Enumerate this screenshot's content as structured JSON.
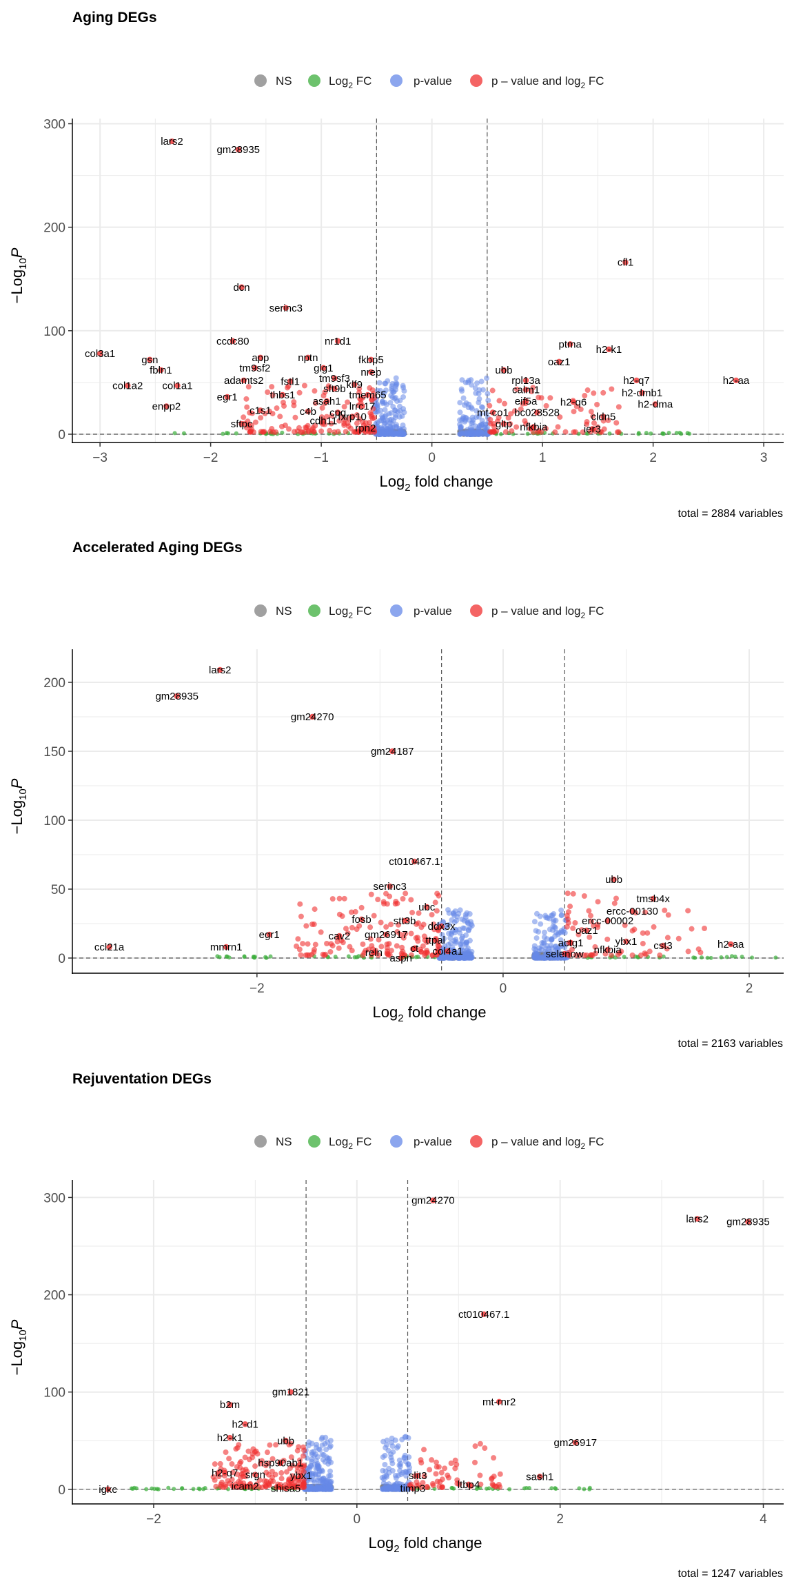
{
  "legend": {
    "items": [
      {
        "key": "ns",
        "label": "NS",
        "color": "#808080"
      },
      {
        "key": "fc",
        "label_main": "Log",
        "label_sub": "2",
        "label_tail": " FC",
        "color": "#3cae3c"
      },
      {
        "key": "p",
        "label": "p-value",
        "color": "#6688e8"
      },
      {
        "key": "both",
        "label_main": "p – value and log",
        "label_sub": "2",
        "label_tail": " FC",
        "color": "#f03030"
      }
    ]
  },
  "axis": {
    "x_main": "Log",
    "x_sub": "2",
    "x_tail": " fold change",
    "y_prefix": "−Log",
    "y_sub": "10",
    "y_var": "P"
  },
  "colors": {
    "ns": "#808080",
    "fc": "#3cae3c",
    "p": "#6688e8",
    "both": "#f03030",
    "grid": "#ebebeb",
    "dashed": "#555555"
  },
  "chart_data": [
    {
      "type": "scatter",
      "title": "Aging DEGs",
      "caption": "total = 2884 variables",
      "xlim": [
        -3.25,
        3.18
      ],
      "ylim": [
        -8,
        305
      ],
      "xticks": [
        -3,
        -2,
        -1,
        0,
        1,
        2,
        3
      ],
      "yticks": [
        0,
        100,
        200,
        300
      ],
      "fc_cutoff": 0.5,
      "p_cutoff_neglog10": 0,
      "labeled_points": [
        {
          "gene": "lars2",
          "x": -2.35,
          "y": 283
        },
        {
          "gene": "gm28935",
          "x": -1.75,
          "y": 275
        },
        {
          "gene": "cfl1",
          "x": 1.75,
          "y": 166
        },
        {
          "gene": "dcn",
          "x": -1.72,
          "y": 142
        },
        {
          "gene": "serinc3",
          "x": -1.32,
          "y": 122
        },
        {
          "gene": "ccdc80",
          "x": -1.8,
          "y": 90
        },
        {
          "gene": "nr1d1",
          "x": -0.85,
          "y": 90
        },
        {
          "gene": "ptma",
          "x": 1.25,
          "y": 87
        },
        {
          "gene": "h2-k1",
          "x": 1.6,
          "y": 82
        },
        {
          "gene": "col3a1",
          "x": -3.0,
          "y": 78
        },
        {
          "gene": "app",
          "x": -1.55,
          "y": 74
        },
        {
          "gene": "nptn",
          "x": -1.12,
          "y": 74
        },
        {
          "gene": "fkbp5",
          "x": -0.55,
          "y": 72
        },
        {
          "gene": "gsn",
          "x": -2.55,
          "y": 72
        },
        {
          "gene": "oaz1",
          "x": 1.15,
          "y": 70
        },
        {
          "gene": "tm9sf2",
          "x": -1.6,
          "y": 64
        },
        {
          "gene": "glg1",
          "x": -0.98,
          "y": 64
        },
        {
          "gene": "ubb",
          "x": 0.65,
          "y": 62
        },
        {
          "gene": "fbln1",
          "x": -2.45,
          "y": 62
        },
        {
          "gene": "nrep",
          "x": -0.55,
          "y": 60
        },
        {
          "gene": "tm9sf3",
          "x": -0.88,
          "y": 54
        },
        {
          "gene": "adamts2",
          "x": -1.7,
          "y": 52
        },
        {
          "gene": "fstl1",
          "x": -1.28,
          "y": 51
        },
        {
          "gene": "rpl13a",
          "x": 0.85,
          "y": 52
        },
        {
          "gene": "h2-q7",
          "x": 1.85,
          "y": 52
        },
        {
          "gene": "h2-aa",
          "x": 2.75,
          "y": 52
        },
        {
          "gene": "col1a2",
          "x": -2.75,
          "y": 47
        },
        {
          "gene": "col1a1",
          "x": -2.3,
          "y": 47
        },
        {
          "gene": "klf9",
          "x": -0.7,
          "y": 48
        },
        {
          "gene": "sft9b",
          "x": -0.88,
          "y": 44
        },
        {
          "gene": "calm1",
          "x": 0.85,
          "y": 43
        },
        {
          "gene": "h2-dmb1",
          "x": 1.9,
          "y": 40
        },
        {
          "gene": "egr1",
          "x": -1.85,
          "y": 36
        },
        {
          "gene": "thbs1",
          "x": -1.35,
          "y": 38
        },
        {
          "gene": "tmem65",
          "x": -0.58,
          "y": 38
        },
        {
          "gene": "asah1",
          "x": -0.95,
          "y": 32
        },
        {
          "gene": "eif5a",
          "x": 0.85,
          "y": 32
        },
        {
          "gene": "h2-q6",
          "x": 1.28,
          "y": 31
        },
        {
          "gene": "h2-dma",
          "x": 2.02,
          "y": 29
        },
        {
          "gene": "enpp2",
          "x": -2.4,
          "y": 27
        },
        {
          "gene": "lrrc17",
          "x": -0.63,
          "y": 27
        },
        {
          "gene": "c1s1",
          "x": -1.55,
          "y": 23
        },
        {
          "gene": "c4b",
          "x": -1.12,
          "y": 22
        },
        {
          "gene": "cpq",
          "x": -0.85,
          "y": 21
        },
        {
          "gene": "fxrp10",
          "x": -0.72,
          "y": 17
        },
        {
          "gene": "mt-co1",
          "x": 0.55,
          "y": 21
        },
        {
          "gene": "bc028528",
          "x": 0.95,
          "y": 21
        },
        {
          "gene": "cldn5",
          "x": 1.55,
          "y": 17
        },
        {
          "gene": "sftpc",
          "x": -1.72,
          "y": 10
        },
        {
          "gene": "cdh11",
          "x": -0.98,
          "y": 13
        },
        {
          "gene": "rpn2",
          "x": -0.6,
          "y": 6
        },
        {
          "gene": "gltp",
          "x": 0.65,
          "y": 10
        },
        {
          "gene": "nfkbia",
          "x": 0.92,
          "y": 7
        },
        {
          "gene": "ier3",
          "x": 1.45,
          "y": 5
        }
      ]
    },
    {
      "type": "scatter",
      "title": "Accelerated Aging DEGs",
      "caption": "total = 2163 variables",
      "xlim": [
        -3.5,
        2.28
      ],
      "ylim": [
        -11,
        224
      ],
      "xticks": [
        -2,
        0,
        2
      ],
      "yticks": [
        0,
        50,
        100,
        150,
        200
      ],
      "fc_cutoff": 0.5,
      "p_cutoff_neglog10": 0,
      "labeled_points": [
        {
          "gene": "lars2",
          "x": -2.3,
          "y": 209
        },
        {
          "gene": "gm28935",
          "x": -2.65,
          "y": 190
        },
        {
          "gene": "gm24270",
          "x": -1.55,
          "y": 175
        },
        {
          "gene": "gm24187",
          "x": -0.9,
          "y": 150
        },
        {
          "gene": "ct010467.1",
          "x": -0.72,
          "y": 70
        },
        {
          "gene": "ubb",
          "x": 0.9,
          "y": 57
        },
        {
          "gene": "serinc3",
          "x": -0.92,
          "y": 52
        },
        {
          "gene": "tmsb4x",
          "x": 1.22,
          "y": 43
        },
        {
          "gene": "ubc",
          "x": -0.62,
          "y": 37
        },
        {
          "gene": "ercc-00130",
          "x": 1.05,
          "y": 34
        },
        {
          "gene": "fosb",
          "x": -1.15,
          "y": 28
        },
        {
          "gene": "stt3b",
          "x": -0.8,
          "y": 27
        },
        {
          "gene": "ercc-00002",
          "x": 0.85,
          "y": 27
        },
        {
          "gene": "ddx3x",
          "x": -0.5,
          "y": 23
        },
        {
          "gene": "egr1",
          "x": -1.9,
          "y": 17
        },
        {
          "gene": "cav2",
          "x": -1.33,
          "y": 16
        },
        {
          "gene": "gm26917",
          "x": -0.95,
          "y": 17
        },
        {
          "gene": "oaz1",
          "x": 0.68,
          "y": 20
        },
        {
          "gene": "ttpal",
          "x": -0.55,
          "y": 13
        },
        {
          "gene": "ybx1",
          "x": 1.0,
          "y": 12
        },
        {
          "gene": "cst3",
          "x": 1.3,
          "y": 9
        },
        {
          "gene": "h2-aa",
          "x": 1.85,
          "y": 10
        },
        {
          "gene": "ccl21a",
          "x": -3.2,
          "y": 8
        },
        {
          "gene": "mmrn1",
          "x": -2.25,
          "y": 8
        },
        {
          "gene": "actg1",
          "x": 0.55,
          "y": 11
        },
        {
          "gene": "ct",
          "x": -0.72,
          "y": 7
        },
        {
          "gene": "col4a1",
          "x": -0.45,
          "y": 5
        },
        {
          "gene": "reln",
          "x": -1.05,
          "y": 4
        },
        {
          "gene": "nfkbia",
          "x": 0.85,
          "y": 6
        },
        {
          "gene": "selenow",
          "x": 0.5,
          "y": 3
        },
        {
          "gene": "aspn",
          "x": -0.83,
          "y": 0
        }
      ]
    },
    {
      "type": "scatter",
      "title": "Rejuventation DEGs",
      "caption": "total = 1247 variables",
      "xlim": [
        -2.8,
        4.2
      ],
      "ylim": [
        -15,
        318
      ],
      "xticks": [
        -2,
        0,
        2,
        4
      ],
      "yticks": [
        0,
        100,
        200,
        300
      ],
      "fc_cutoff": 0.5,
      "p_cutoff_neglog10": 0,
      "labeled_points": [
        {
          "gene": "gm24270",
          "x": 0.75,
          "y": 297
        },
        {
          "gene": "lars2",
          "x": 3.35,
          "y": 278
        },
        {
          "gene": "gm28935",
          "x": 3.85,
          "y": 275
        },
        {
          "gene": "ct010467.1",
          "x": 1.25,
          "y": 180
        },
        {
          "gene": "gm1821",
          "x": -0.65,
          "y": 100
        },
        {
          "gene": "mt-rnr2",
          "x": 1.4,
          "y": 90
        },
        {
          "gene": "b2m",
          "x": -1.25,
          "y": 87
        },
        {
          "gene": "h2-d1",
          "x": -1.1,
          "y": 67
        },
        {
          "gene": "h2-k1",
          "x": -1.25,
          "y": 53
        },
        {
          "gene": "ubb",
          "x": -0.7,
          "y": 50
        },
        {
          "gene": "gm26917",
          "x": 2.15,
          "y": 48
        },
        {
          "gene": "hsp90ab1",
          "x": -0.75,
          "y": 27
        },
        {
          "gene": "h2-q7",
          "x": -1.3,
          "y": 17
        },
        {
          "gene": "srgn",
          "x": -1.0,
          "y": 15
        },
        {
          "gene": "ybx1",
          "x": -0.55,
          "y": 14
        },
        {
          "gene": "slit3",
          "x": 0.6,
          "y": 14
        },
        {
          "gene": "sash1",
          "x": 1.8,
          "y": 13
        },
        {
          "gene": "ltbp4",
          "x": 1.1,
          "y": 5
        },
        {
          "gene": "icam2",
          "x": -1.1,
          "y": 3
        },
        {
          "gene": "shisa5",
          "x": -0.7,
          "y": 1
        },
        {
          "gene": "timp3",
          "x": 0.55,
          "y": 1
        },
        {
          "gene": "igkc",
          "x": -2.45,
          "y": 0
        }
      ]
    }
  ]
}
